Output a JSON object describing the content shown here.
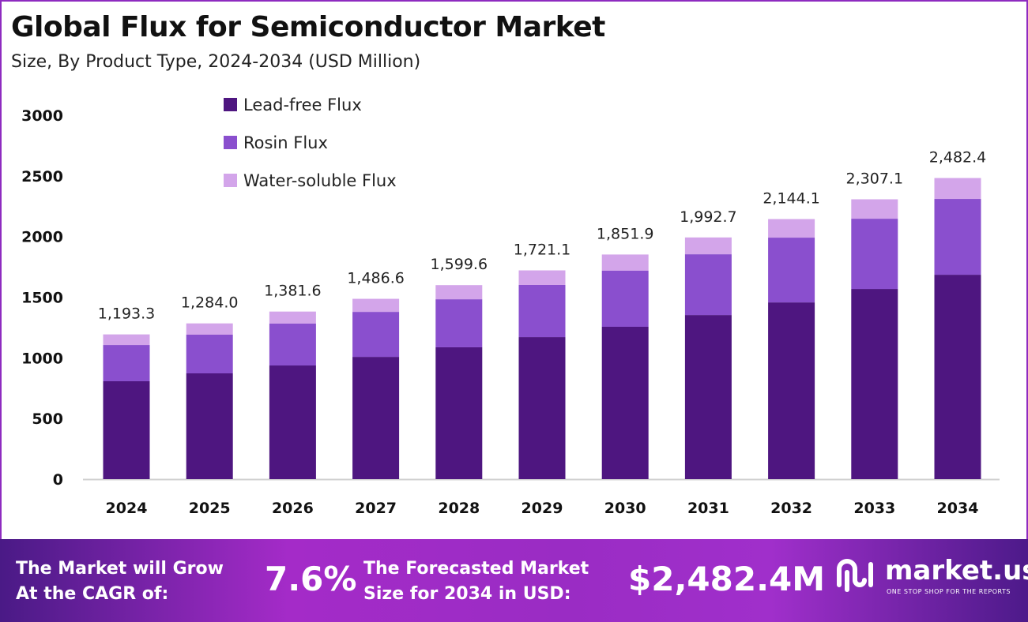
{
  "title": "Global Flux for Semiconductor Market",
  "subtitle": "Size, By Product Type, 2024-2034 (USD Million)",
  "chart_data": {
    "type": "bar",
    "stacked": true,
    "categories": [
      "2024",
      "2025",
      "2026",
      "2027",
      "2028",
      "2029",
      "2030",
      "2031",
      "2032",
      "2033",
      "2034"
    ],
    "series": [
      {
        "name": "Lead-free Flux",
        "color": "#4e1680",
        "values": [
          807,
          872,
          937,
          1008,
          1087,
          1171,
          1256,
          1353,
          1457,
          1568,
          1685
        ]
      },
      {
        "name": "Rosin Flux",
        "color": "#8a4fce",
        "values": [
          299,
          319,
          345,
          371,
          396,
          430,
          462,
          501,
          534,
          579,
          625
        ]
      },
      {
        "name": "Water-soluble Flux",
        "color": "#d3a5ea",
        "values": [
          87.3,
          93,
          99.6,
          107.6,
          116.6,
          120.1,
          133.9,
          138.7,
          153.1,
          160.1,
          172.4
        ]
      }
    ],
    "totals": [
      "1,193.3",
      "1,284.0",
      "1,381.6",
      "1,486.6",
      "1,599.6",
      "1,721.1",
      "1,851.9",
      "1,992.7",
      "2,144.1",
      "2,307.1",
      "2,482.4"
    ],
    "yticks": [
      "0",
      "500",
      "1000",
      "1500",
      "2000",
      "2500",
      "3000"
    ],
    "ylim": [
      0,
      3000
    ],
    "grid": false,
    "legend_position": "top-left"
  },
  "footer": {
    "cagr_label_1": "The Market will Grow",
    "cagr_label_2": "At the CAGR of:",
    "cagr_value": "7.6%",
    "forecast_label_1": "The Forecasted Market",
    "forecast_label_2": "Size for 2034 in USD:",
    "forecast_value": "$2,482.4M",
    "brand": "market.us",
    "tagline": "ONE STOP SHOP FOR THE REPORTS"
  }
}
